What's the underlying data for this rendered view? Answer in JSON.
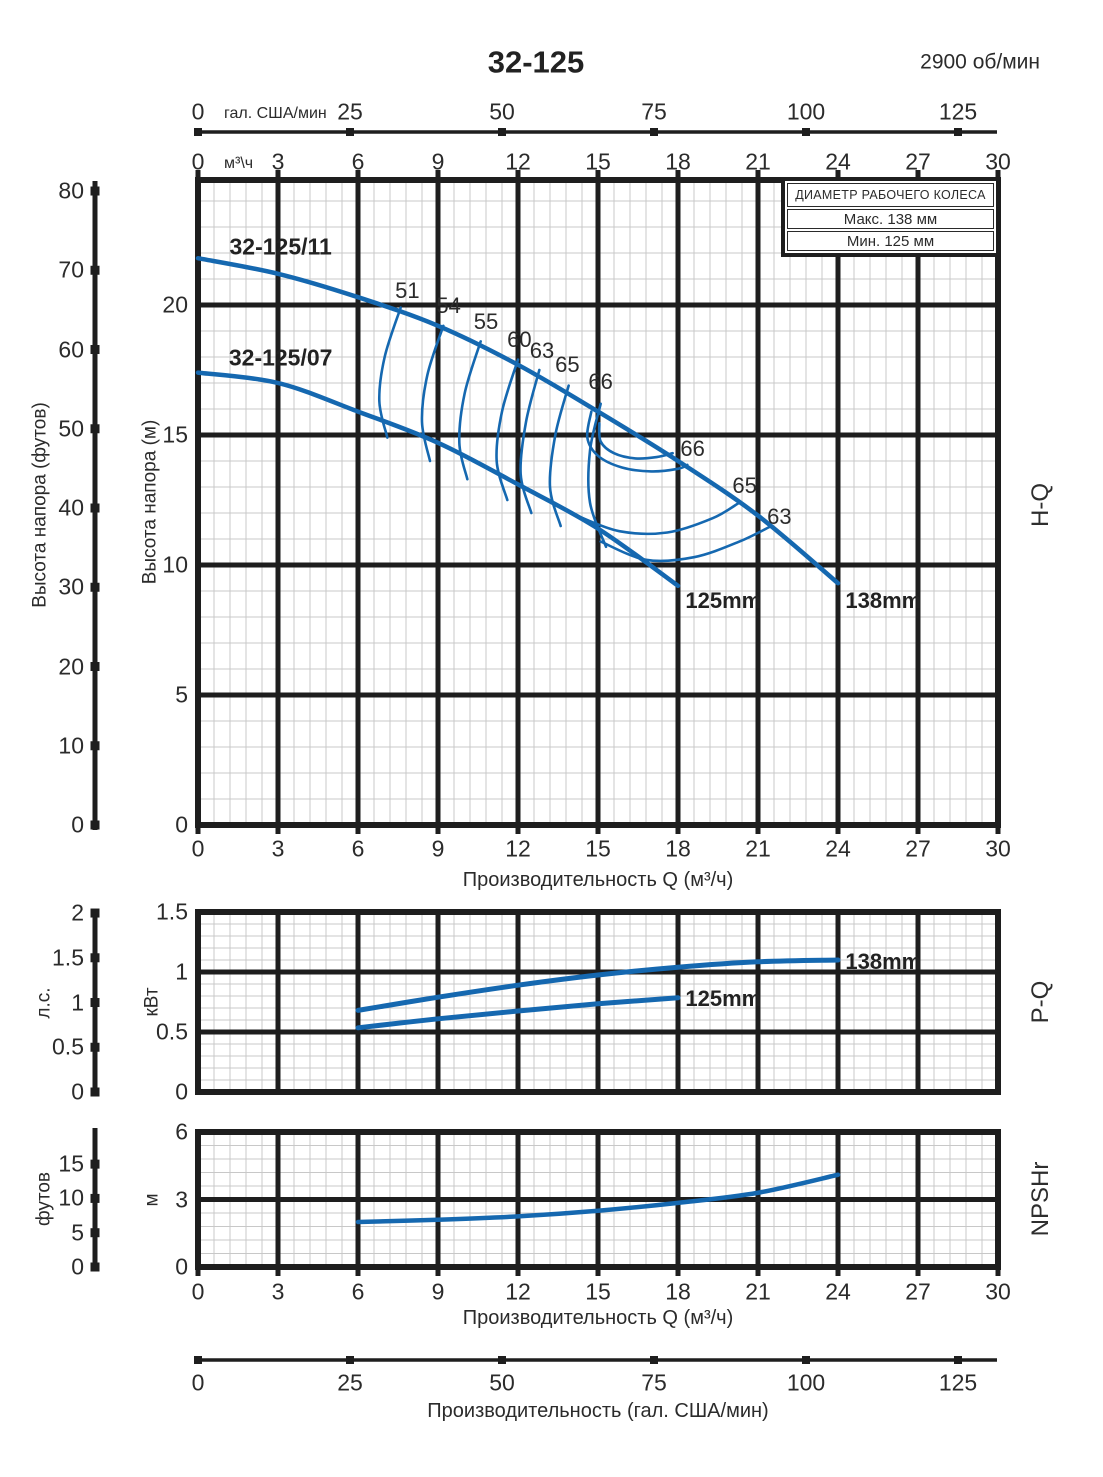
{
  "header": {
    "title": "32-125",
    "rpm": "2900 об/мин"
  },
  "legend": {
    "title": "ДИАМЕТР РАБОЧЕГО КОЛЕСА",
    "max_label": "Макс. 138 мм",
    "min_label": "Мин. 125 мм"
  },
  "sections": {
    "hq": "H-Q",
    "pq": "P-Q",
    "npshr": "NPSHr"
  },
  "axes": {
    "gpm_top": {
      "unit": "гал. США/мин",
      "ticks": [
        0,
        25,
        50,
        75,
        100,
        125
      ]
    },
    "m3h_top": {
      "unit": "м³\\ч",
      "ticks": [
        0,
        3,
        6,
        9,
        12,
        15,
        18,
        21,
        24,
        27,
        30
      ]
    },
    "hq_x": {
      "title": "Производительность Q (м³/ч)",
      "ticks": [
        0,
        3,
        6,
        9,
        12,
        15,
        18,
        21,
        24,
        27,
        30
      ]
    },
    "hq_y_ft": {
      "title": "Высота напора (футов)",
      "ticks": [
        0,
        10,
        20,
        30,
        40,
        50,
        60,
        70,
        80
      ]
    },
    "hq_y_m": {
      "title": "Высота напора (м)",
      "ticks": [
        0,
        5,
        10,
        15,
        20
      ]
    },
    "pq_y_hp": {
      "title": "л.с.",
      "ticks": [
        0,
        0.5,
        1,
        1.5,
        2
      ]
    },
    "pq_y_kw": {
      "title": "кВт",
      "ticks": [
        0,
        0.5,
        1,
        1.5
      ]
    },
    "np_y_ft": {
      "title": "футов",
      "ticks": [
        0,
        5,
        10,
        15
      ]
    },
    "np_y_m": {
      "title": "м",
      "ticks": [
        0,
        3,
        6
      ]
    },
    "np_x": {
      "title": "Производительность Q (м³/ч)",
      "ticks": [
        0,
        3,
        6,
        9,
        12,
        15,
        18,
        21,
        24,
        27,
        30
      ]
    },
    "gpm_bottom": {
      "title": "Производительность (гал. США/мин)",
      "ticks": [
        0,
        25,
        50,
        75,
        100,
        125
      ]
    }
  },
  "chart_data": [
    {
      "id": "hq",
      "type": "line",
      "name": "H-Q head vs flow",
      "xlabel": "Производительность Q (м³/ч)",
      "ylabel": "Высота напора (м)",
      "xlim": [
        0,
        30
      ],
      "ylim": [
        0,
        24.8
      ],
      "x_major_step": 3,
      "y_major_step": 5,
      "grid": true,
      "series": [
        {
          "name": "32-125/11",
          "diameter": "138mm",
          "points": [
            [
              0,
              21.8
            ],
            [
              3,
              21.2
            ],
            [
              6,
              20.3
            ],
            [
              9,
              19.2
            ],
            [
              12,
              17.7
            ],
            [
              15,
              15.9
            ],
            [
              18,
              14.0
            ],
            [
              21,
              11.9
            ],
            [
              24,
              9.3
            ]
          ]
        },
        {
          "name": "32-125/07",
          "diameter": "125mm",
          "points": [
            [
              0,
              17.4
            ],
            [
              3,
              17.0
            ],
            [
              6,
              15.9
            ],
            [
              9,
              14.7
            ],
            [
              12,
              13.1
            ],
            [
              15,
              11.4
            ],
            [
              18,
              9.2
            ]
          ]
        }
      ],
      "efficiency_contours": [
        {
          "label": "51",
          "points": [
            [
              7.6,
              19.9
            ],
            [
              7.0,
              18.0
            ],
            [
              6.8,
              16.3
            ],
            [
              7.1,
              14.9
            ]
          ]
        },
        {
          "label": "54",
          "points": [
            [
              9.2,
              19.2
            ],
            [
              8.6,
              17.3
            ],
            [
              8.4,
              15.5
            ],
            [
              8.7,
              14.0
            ]
          ]
        },
        {
          "label": "55",
          "points": [
            [
              10.6,
              18.6
            ],
            [
              10.0,
              16.6
            ],
            [
              9.8,
              14.7
            ],
            [
              10.1,
              13.3
            ]
          ]
        },
        {
          "label": "60",
          "points": [
            [
              12.0,
              17.9
            ],
            [
              11.4,
              15.9
            ],
            [
              11.2,
              14.0
            ],
            [
              11.6,
              12.5
            ]
          ]
        },
        {
          "label": "63",
          "points": [
            [
              12.8,
              17.5
            ],
            [
              12.3,
              15.5
            ],
            [
              12.1,
              13.5
            ],
            [
              12.5,
              12.0
            ]
          ]
        },
        {
          "label": "65",
          "points": [
            [
              13.9,
              16.9
            ],
            [
              13.4,
              15.0
            ],
            [
              13.2,
              13.0
            ],
            [
              13.6,
              11.5
            ]
          ]
        },
        {
          "label": "66",
          "points": [
            [
              15.1,
              16.2
            ],
            [
              14.7,
              14.4
            ],
            [
              14.7,
              12.4
            ],
            [
              15.3,
              10.7
            ]
          ]
        },
        {
          "label": "66-loop",
          "points": [
            [
              14.75,
              15.9
            ],
            [
              14.6,
              14.9
            ],
            [
              15.0,
              14.2
            ],
            [
              15.9,
              13.75
            ],
            [
              17.0,
              13.6
            ],
            [
              18.0,
              13.7
            ],
            [
              18.35,
              13.85
            ]
          ]
        },
        {
          "label": "66-inner",
          "points": [
            [
              15.05,
              15.45
            ],
            [
              15.1,
              14.75
            ],
            [
              15.6,
              14.3
            ],
            [
              16.4,
              14.1
            ],
            [
              17.2,
              14.15
            ],
            [
              17.8,
              14.3
            ]
          ]
        },
        {
          "label": "65-right",
          "points": [
            [
              14.2,
              11.9
            ],
            [
              15.8,
              11.3
            ],
            [
              17.6,
              11.25
            ],
            [
              19.3,
              11.8
            ],
            [
              20.3,
              12.4
            ]
          ]
        },
        {
          "label": "63-right",
          "points": [
            [
              15.1,
              10.9
            ],
            [
              16.8,
              10.2
            ],
            [
              18.6,
              10.3
            ],
            [
              20.3,
              10.9
            ],
            [
              21.5,
              11.5
            ]
          ]
        }
      ],
      "labels": [
        {
          "text": "32-125/11",
          "q": 3.1,
          "v": 22.25,
          "style": "pump"
        },
        {
          "text": "32-125/07",
          "q": 3.1,
          "v": 17.95,
          "style": "pump"
        },
        {
          "text": "125mm",
          "q": 19.7,
          "v": 8.6,
          "style": "curve"
        },
        {
          "text": "138mm",
          "q": 25.7,
          "v": 8.6,
          "style": "curve"
        },
        {
          "text": "51",
          "q": 7.85,
          "v": 20.55,
          "style": "eff"
        },
        {
          "text": "54",
          "q": 9.4,
          "v": 19.95,
          "style": "eff"
        },
        {
          "text": "55",
          "q": 10.8,
          "v": 19.35,
          "style": "eff"
        },
        {
          "text": "60",
          "q": 12.05,
          "v": 18.65,
          "style": "eff"
        },
        {
          "text": "63",
          "q": 12.9,
          "v": 18.25,
          "style": "eff"
        },
        {
          "text": "65",
          "q": 13.85,
          "v": 17.7,
          "style": "eff"
        },
        {
          "text": "66",
          "q": 15.1,
          "v": 17.05,
          "style": "eff"
        },
        {
          "text": "66",
          "q": 18.55,
          "v": 14.45,
          "style": "eff"
        },
        {
          "text": "65",
          "q": 20.5,
          "v": 13.05,
          "style": "eff"
        },
        {
          "text": "63",
          "q": 21.8,
          "v": 11.85,
          "style": "eff"
        }
      ]
    },
    {
      "id": "pq",
      "type": "line",
      "name": "P-Q power vs flow",
      "xlabel": "Производительность Q (м³/ч)",
      "ylabel": "кВт",
      "xlim": [
        0,
        30
      ],
      "ylim": [
        0,
        1.5
      ],
      "x_major_step": 3,
      "y_major_step": 0.5,
      "grid": true,
      "series": [
        {
          "name": "138mm",
          "points": [
            [
              6,
              0.68
            ],
            [
              9,
              0.79
            ],
            [
              12,
              0.89
            ],
            [
              15,
              0.975
            ],
            [
              18,
              1.04
            ],
            [
              21,
              1.085
            ],
            [
              24,
              1.1
            ]
          ]
        },
        {
          "name": "125mm",
          "points": [
            [
              6,
              0.535
            ],
            [
              9,
              0.61
            ],
            [
              12,
              0.675
            ],
            [
              15,
              0.735
            ],
            [
              18,
              0.785
            ]
          ]
        }
      ],
      "labels": [
        {
          "text": "138mm",
          "q": 25.7,
          "v": 1.085,
          "style": "curve"
        },
        {
          "text": "125mm",
          "q": 19.7,
          "v": 0.775,
          "style": "curve"
        }
      ]
    },
    {
      "id": "npshr",
      "type": "line",
      "name": "NPSHr vs flow",
      "xlabel": "Производительность Q (м³/ч)",
      "ylabel": "м",
      "xlim": [
        0,
        30
      ],
      "ylim": [
        0,
        6
      ],
      "x_major_step": 3,
      "y_major_step": 3,
      "grid": true,
      "series": [
        {
          "name": "NPSHr",
          "points": [
            [
              6,
              2.0
            ],
            [
              9,
              2.1
            ],
            [
              12,
              2.25
            ],
            [
              15,
              2.5
            ],
            [
              18,
              2.85
            ],
            [
              21,
              3.3
            ],
            [
              24,
              4.1
            ]
          ]
        }
      ],
      "labels": []
    }
  ],
  "colors": {
    "curve": "#1568b0",
    "axis": "#1e1e1e",
    "minor_grid": "#c8c8c8",
    "text": "#2b2b2b"
  }
}
